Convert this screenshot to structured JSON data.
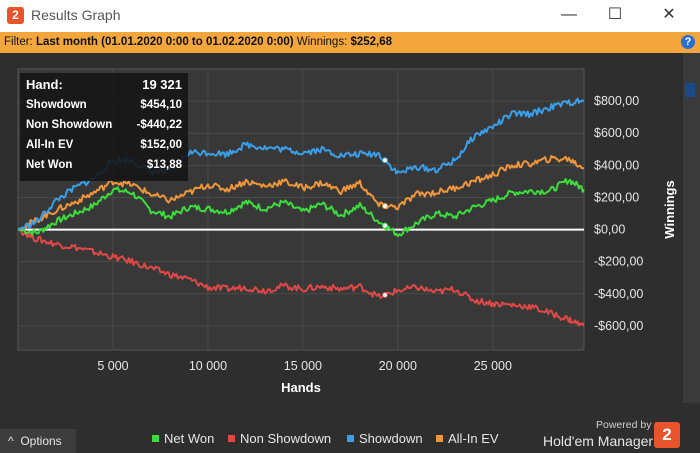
{
  "window": {
    "title": "Results Graph",
    "minimize": "—",
    "maximize": "☐",
    "close": "✕"
  },
  "filter": {
    "prefix": "Filter:",
    "period": "Last month (01.01.2020 0:00 to 01.02.2020 0:00)",
    "winnings_label": "Winnings:",
    "winnings_value": "$252,68"
  },
  "summary": {
    "rows": [
      {
        "label": "Hand:",
        "value": "19 321"
      },
      {
        "label": "Showdown",
        "value": "$454,10"
      },
      {
        "label": "Non Showdown",
        "value": "-$440,22"
      },
      {
        "label": "All-In EV",
        "value": "$152,00"
      },
      {
        "label": "Net Won",
        "value": "$13,88"
      }
    ]
  },
  "options_label": "Options",
  "powered_by": "Powered by",
  "brand": "Hold'em Manager",
  "colors": {
    "net_won": "#3ddc3d",
    "non_showdown": "#e04848",
    "showdown": "#3a9ee8",
    "allin_ev": "#f0963a",
    "accent": "#f2a63c"
  },
  "chart_data": {
    "type": "line",
    "xlabel": "Hands",
    "ylabel": "Winnings",
    "xlim": [
      0,
      29800
    ],
    "ylim": [
      -750,
      1000
    ],
    "x_ticks": [
      5000,
      10000,
      15000,
      20000,
      25000
    ],
    "x_tick_labels": [
      "5 000",
      "10 000",
      "15 000",
      "20 000",
      "25 000"
    ],
    "y_ticks": [
      800,
      600,
      400,
      200,
      0,
      -200,
      -400,
      -600
    ],
    "y_tick_labels": [
      "$800,00",
      "$600,00",
      "$400,00",
      "$200,00",
      "$0,00",
      "-$200,00",
      "-$400,00",
      "-$600,00"
    ],
    "legend_position": "bottom",
    "marker_x": 19321,
    "series": [
      {
        "name": "Net Won",
        "x": [
          0,
          1000,
          2000,
          3000,
          4000,
          5000,
          6000,
          7000,
          8000,
          9000,
          10000,
          11000,
          12000,
          13000,
          14000,
          15000,
          16000,
          17000,
          18000,
          19000,
          20000,
          21000,
          22000,
          23000,
          24000,
          25000,
          26000,
          27000,
          28000,
          29000,
          29800
        ],
        "values": [
          0,
          -20,
          50,
          100,
          150,
          250,
          230,
          120,
          80,
          140,
          130,
          110,
          170,
          130,
          170,
          110,
          160,
          90,
          150,
          50,
          -30,
          40,
          100,
          80,
          140,
          180,
          230,
          240,
          240,
          310,
          250
        ]
      },
      {
        "name": "Non Showdown",
        "x": [
          0,
          1000,
          2000,
          3000,
          4000,
          5000,
          6000,
          7000,
          8000,
          9000,
          10000,
          11000,
          12000,
          13000,
          14000,
          15000,
          16000,
          17000,
          18000,
          19000,
          20000,
          21000,
          22000,
          23000,
          24000,
          25000,
          26000,
          27000,
          28000,
          29000,
          29800
        ],
        "values": [
          0,
          -60,
          -90,
          -110,
          -140,
          -170,
          -200,
          -240,
          -280,
          -310,
          -360,
          -370,
          -360,
          -380,
          -350,
          -370,
          -355,
          -370,
          -355,
          -420,
          -380,
          -360,
          -390,
          -370,
          -440,
          -460,
          -470,
          -480,
          -520,
          -560,
          -600
        ]
      },
      {
        "name": "Showdown",
        "x": [
          0,
          1000,
          2000,
          3000,
          4000,
          5000,
          6000,
          7000,
          8000,
          9000,
          10000,
          11000,
          12000,
          13000,
          14000,
          15000,
          16000,
          17000,
          18000,
          19000,
          20000,
          21000,
          22000,
          23000,
          24000,
          25000,
          26000,
          27000,
          28000,
          29000,
          29800
        ],
        "values": [
          0,
          50,
          180,
          260,
          320,
          430,
          430,
          360,
          360,
          480,
          480,
          470,
          530,
          510,
          500,
          480,
          500,
          460,
          470,
          470,
          350,
          390,
          370,
          430,
          580,
          640,
          720,
          720,
          760,
          790,
          800
        ]
      },
      {
        "name": "All-In EV",
        "x": [
          0,
          1000,
          2000,
          3000,
          4000,
          5000,
          6000,
          7000,
          8000,
          9000,
          10000,
          11000,
          12000,
          13000,
          14000,
          15000,
          16000,
          17000,
          18000,
          19000,
          20000,
          21000,
          22000,
          23000,
          24000,
          25000,
          26000,
          27000,
          28000,
          29000,
          29800
        ],
        "values": [
          0,
          60,
          120,
          170,
          230,
          300,
          280,
          220,
          180,
          230,
          280,
          250,
          300,
          270,
          300,
          260,
          290,
          240,
          290,
          150,
          140,
          220,
          230,
          260,
          300,
          340,
          400,
          410,
          440,
          440,
          380
        ]
      }
    ]
  }
}
